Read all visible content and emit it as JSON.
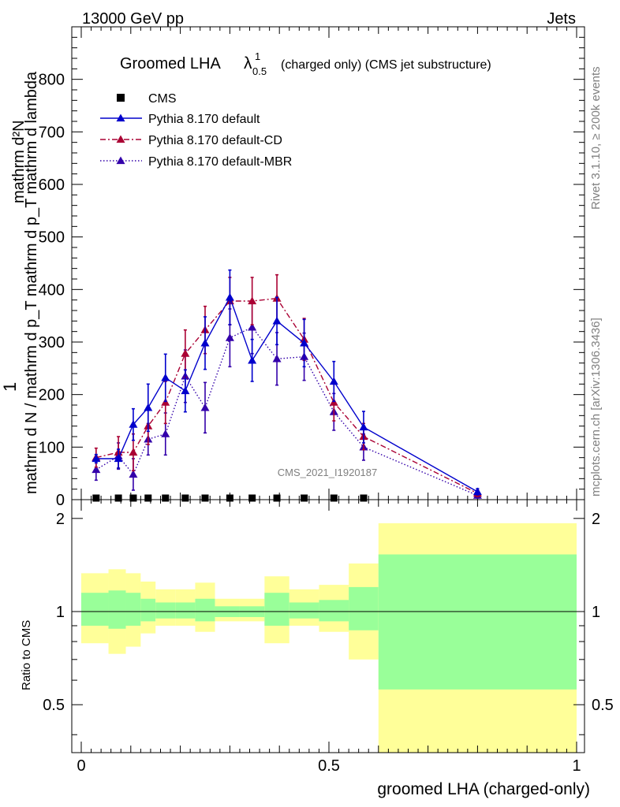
{
  "header": {
    "energy": "13000 GeV pp",
    "category": "Jets",
    "plot_title_prefix": "Groomed LHA",
    "plot_title_lambda": "λ",
    "plot_title_sup": "1",
    "plot_title_sub": "0.5",
    "plot_title_suffix": "(charged only) (CMS jet substructure)",
    "side_label_top": "Rivet 3.1.10, ≥ 200k events",
    "side_label_bottom": "mcplots.cern.ch [arXiv:1306.3436]",
    "watermark": "CMS_2021_I1920187"
  },
  "colors": {
    "cms": "#000000",
    "default": "#0000cc",
    "cd": "#aa0033",
    "mbr": "#3300aa",
    "band_outer": "#ffff99",
    "band_inner": "#99ff99"
  },
  "chart_data": [
    {
      "type": "line",
      "panel": "main",
      "ylabel_numerator": "mathrm d²N",
      "ylabel_prefix": "1",
      "ylabel_denominator": "mathrm d N / mathrm d p_T mathrm d p_T mathrm d lambda",
      "ylim": [
        0,
        900
      ],
      "yticks": [
        "0",
        "100",
        "200",
        "300",
        "400",
        "500",
        "600",
        "700",
        "800"
      ],
      "xlim": [
        0,
        1
      ],
      "legend_placement": "top-left",
      "legend": [
        "CMS",
        "Pythia 8.170 default",
        "Pythia 8.170 default-CD",
        "Pythia 8.170 default-MBR"
      ],
      "series": [
        {
          "name": "CMS",
          "style": "markers",
          "x": [
            0.03,
            0.075,
            0.105,
            0.135,
            0.17,
            0.21,
            0.25,
            0.3,
            0.345,
            0.395,
            0.45,
            0.51,
            0.57
          ],
          "y": [
            1.5,
            1.5,
            1.5,
            1.5,
            1.5,
            1.5,
            1.5,
            1.5,
            1.5,
            1.5,
            1.5,
            1.5,
            1.5
          ]
        },
        {
          "name": "Pythia 8.170 default",
          "style": "solid",
          "x": [
            0.03,
            0.075,
            0.105,
            0.135,
            0.17,
            0.21,
            0.25,
            0.3,
            0.345,
            0.395,
            0.45,
            0.51,
            0.57,
            0.8
          ],
          "y": [
            78,
            78,
            143,
            175,
            232,
            207,
            298,
            385,
            265,
            340,
            298,
            225,
            138,
            15
          ],
          "err": [
            8,
            18,
            30,
            45,
            45,
            40,
            50,
            52,
            40,
            45,
            45,
            38,
            30,
            6
          ]
        },
        {
          "name": "Pythia 8.170 default-CD",
          "style": "dashdot",
          "x": [
            0.03,
            0.075,
            0.105,
            0.135,
            0.17,
            0.21,
            0.25,
            0.3,
            0.345,
            0.395,
            0.45,
            0.51,
            0.57,
            0.8
          ],
          "y": [
            80,
            90,
            90,
            140,
            185,
            278,
            323,
            378,
            378,
            383,
            305,
            185,
            120,
            12
          ],
          "err": [
            18,
            30,
            35,
            35,
            40,
            45,
            45,
            45,
            45,
            45,
            40,
            35,
            25,
            6
          ]
        },
        {
          "name": "Pythia 8.170 default-MBR",
          "style": "dotted",
          "x": [
            0.03,
            0.075,
            0.105,
            0.135,
            0.17,
            0.21,
            0.25,
            0.3,
            0.345,
            0.395,
            0.45,
            0.51,
            0.57,
            0.8
          ],
          "y": [
            57,
            83,
            48,
            115,
            125,
            235,
            175,
            308,
            328,
            268,
            272,
            167,
            100,
            8
          ],
          "err": [
            20,
            25,
            30,
            30,
            40,
            50,
            48,
            55,
            50,
            50,
            45,
            35,
            25,
            5
          ]
        }
      ]
    },
    {
      "type": "area",
      "panel": "ratio",
      "ylabel": "Ratio to CMS",
      "ylim": [
        0.35,
        2.3
      ],
      "yticks": [
        "0.5",
        "1",
        "2"
      ],
      "xlabel": "groomed LHA (charged-only)",
      "xlim": [
        0,
        1
      ],
      "xticks": [
        "0",
        "0.5",
        "1"
      ],
      "bins": [
        {
          "lo": 0.0,
          "hi": 0.055,
          "outer": [
            0.79,
            1.33
          ],
          "inner": [
            0.9,
            1.15
          ]
        },
        {
          "lo": 0.055,
          "hi": 0.09,
          "outer": [
            0.73,
            1.37
          ],
          "inner": [
            0.88,
            1.17
          ]
        },
        {
          "lo": 0.09,
          "hi": 0.12,
          "outer": [
            0.77,
            1.33
          ],
          "inner": [
            0.9,
            1.15
          ]
        },
        {
          "lo": 0.12,
          "hi": 0.15,
          "outer": [
            0.85,
            1.25
          ],
          "inner": [
            0.93,
            1.1
          ]
        },
        {
          "lo": 0.15,
          "hi": 0.19,
          "outer": [
            0.9,
            1.18
          ],
          "inner": [
            0.95,
            1.07
          ]
        },
        {
          "lo": 0.19,
          "hi": 0.23,
          "outer": [
            0.9,
            1.18
          ],
          "inner": [
            0.95,
            1.07
          ]
        },
        {
          "lo": 0.23,
          "hi": 0.27,
          "outer": [
            0.86,
            1.24
          ],
          "inner": [
            0.93,
            1.1
          ]
        },
        {
          "lo": 0.27,
          "hi": 0.32,
          "outer": [
            0.93,
            1.1
          ],
          "inner": [
            0.96,
            1.04
          ]
        },
        {
          "lo": 0.32,
          "hi": 0.37,
          "outer": [
            0.93,
            1.1
          ],
          "inner": [
            0.96,
            1.04
          ]
        },
        {
          "lo": 0.37,
          "hi": 0.42,
          "outer": [
            0.79,
            1.3
          ],
          "inner": [
            0.9,
            1.15
          ]
        },
        {
          "lo": 0.42,
          "hi": 0.48,
          "outer": [
            0.9,
            1.18
          ],
          "inner": [
            0.95,
            1.07
          ]
        },
        {
          "lo": 0.48,
          "hi": 0.54,
          "outer": [
            0.86,
            1.22
          ],
          "inner": [
            0.93,
            1.09
          ]
        },
        {
          "lo": 0.54,
          "hi": 0.6,
          "outer": [
            0.7,
            1.43
          ],
          "inner": [
            0.87,
            1.2
          ]
        },
        {
          "lo": 0.6,
          "hi": 1.0,
          "outer": [
            0.35,
            1.93
          ],
          "inner": [
            0.56,
            1.53
          ]
        }
      ],
      "reference_line": 1
    }
  ]
}
